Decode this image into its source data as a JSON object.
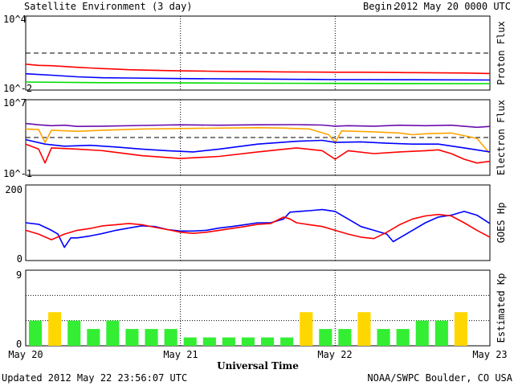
{
  "header": {
    "title": "Satellite Environment (3 day)",
    "begin_label": "Begin:",
    "begin_value": "2012 May 20 0000 UTC"
  },
  "footer": {
    "updated": "Updated 2012 May 22 23:56:07 UTC",
    "credit": "NOAA/SWPC Boulder, CO USA"
  },
  "colors": {
    "red": "#ff0000",
    "blue": "#0000ff",
    "green": "#00dd00",
    "orange": "#ffa500",
    "purple": "#6a0dad",
    "kp_green": "#33ee33",
    "kp_yellow": "#ffd700"
  },
  "chart_data": [
    {
      "id": "proton",
      "type": "line",
      "ylabel": "Proton Flux",
      "yscale": "log",
      "ylim": [
        0.01,
        10000
      ],
      "ytick_labels": [
        "10^4",
        "10^-2"
      ],
      "threshold": 10,
      "series": [
        {
          "color": "red",
          "values": [
            [
              0,
              1.25
            ],
            [
              2,
              1.0
            ],
            [
              4,
              0.95
            ],
            [
              6,
              0.82
            ],
            [
              8,
              0.7
            ],
            [
              10,
              0.62
            ],
            [
              12,
              0.55
            ],
            [
              14,
              0.5
            ],
            [
              16,
              0.45
            ],
            [
              18,
              0.42
            ],
            [
              20,
              0.4
            ],
            [
              22,
              0.38
            ],
            [
              24,
              0.36
            ],
            [
              28,
              0.34
            ],
            [
              32,
              0.32
            ],
            [
              36,
              0.31
            ],
            [
              40,
              0.3
            ],
            [
              44,
              0.29
            ],
            [
              48,
              0.28
            ],
            [
              52,
              0.28
            ],
            [
              56,
              0.27
            ],
            [
              60,
              0.26
            ],
            [
              64,
              0.25
            ],
            [
              68,
              0.24
            ],
            [
              72,
              0.22
            ]
          ]
        },
        {
          "color": "blue",
          "values": [
            [
              0,
              0.21
            ],
            [
              4,
              0.16
            ],
            [
              8,
              0.12
            ],
            [
              12,
              0.1
            ],
            [
              16,
              0.095
            ],
            [
              24,
              0.085
            ],
            [
              36,
              0.078
            ],
            [
              48,
              0.07
            ],
            [
              60,
              0.068
            ],
            [
              72,
              0.065
            ]
          ]
        },
        {
          "color": "green",
          "values": [
            [
              0,
              0.045
            ],
            [
              12,
              0.04
            ],
            [
              24,
              0.038
            ],
            [
              36,
              0.036
            ],
            [
              48,
              0.035
            ],
            [
              60,
              0.034
            ],
            [
              72,
              0.033
            ]
          ]
        }
      ]
    },
    {
      "id": "electron",
      "type": "line",
      "ylabel": "Electron Flux",
      "yscale": "log",
      "ylim": [
        0.1,
        10000000
      ],
      "ytick_labels": [
        "10^7",
        "10^-1"
      ],
      "threshold": 1000,
      "series": [
        {
          "color": "purple",
          "values": [
            [
              0,
              30000
            ],
            [
              2,
              22000
            ],
            [
              4,
              18000
            ],
            [
              6,
              20000
            ],
            [
              8,
              15000
            ],
            [
              12,
              16000
            ],
            [
              18,
              19000
            ],
            [
              24,
              22000
            ],
            [
              30,
              20000
            ],
            [
              36,
              22000
            ],
            [
              42,
              23000
            ],
            [
              46,
              21000
            ],
            [
              48,
              16000
            ],
            [
              50,
              18000
            ],
            [
              54,
              16000
            ],
            [
              58,
              20000
            ],
            [
              62,
              18000
            ],
            [
              66,
              20000
            ],
            [
              70,
              12000
            ],
            [
              72,
              15000
            ]
          ]
        },
        {
          "color": "orange",
          "values": [
            [
              0,
              8000
            ],
            [
              2,
              7000
            ],
            [
              3,
              300
            ],
            [
              4,
              6000
            ],
            [
              8,
              4500
            ],
            [
              12,
              6000
            ],
            [
              18,
              8000
            ],
            [
              24,
              9000
            ],
            [
              30,
              10000
            ],
            [
              36,
              11000
            ],
            [
              40,
              10000
            ],
            [
              44,
              8000
            ],
            [
              47,
              2000
            ],
            [
              48,
              300
            ],
            [
              49,
              5000
            ],
            [
              54,
              4000
            ],
            [
              58,
              3000
            ],
            [
              60,
              2000
            ],
            [
              62,
              2500
            ],
            [
              66,
              3000
            ],
            [
              70,
              800
            ],
            [
              72,
              20
            ]
          ]
        },
        {
          "color": "blue",
          "values": [
            [
              0,
              600
            ],
            [
              3,
              200
            ],
            [
              6,
              120
            ],
            [
              10,
              150
            ],
            [
              14,
              100
            ],
            [
              18,
              60
            ],
            [
              22,
              40
            ],
            [
              26,
              30
            ],
            [
              30,
              60
            ],
            [
              36,
              200
            ],
            [
              42,
              400
            ],
            [
              46,
              500
            ],
            [
              48,
              300
            ],
            [
              52,
              350
            ],
            [
              56,
              250
            ],
            [
              60,
              200
            ],
            [
              64,
              200
            ],
            [
              68,
              80
            ],
            [
              72,
              30
            ]
          ]
        },
        {
          "color": "red",
          "values": [
            [
              0,
              200
            ],
            [
              2,
              60
            ],
            [
              3,
              2
            ],
            [
              4,
              80
            ],
            [
              8,
              60
            ],
            [
              12,
              40
            ],
            [
              18,
              12
            ],
            [
              24,
              6
            ],
            [
              30,
              10
            ],
            [
              36,
              30
            ],
            [
              42,
              80
            ],
            [
              46,
              40
            ],
            [
              48,
              5
            ],
            [
              50,
              40
            ],
            [
              54,
              20
            ],
            [
              58,
              30
            ],
            [
              62,
              40
            ],
            [
              64,
              50
            ],
            [
              66,
              20
            ],
            [
              68,
              5
            ],
            [
              70,
              2
            ],
            [
              72,
              3
            ]
          ]
        }
      ]
    },
    {
      "id": "hp",
      "type": "line",
      "ylabel": "GOES Hp",
      "ylim": [
        0,
        200
      ],
      "ytick_labels": [
        "200",
        "0"
      ],
      "series": [
        {
          "color": "blue",
          "values": [
            [
              0,
              100
            ],
            [
              2,
              96
            ],
            [
              4,
              80
            ],
            [
              5,
              70
            ],
            [
              6,
              35
            ],
            [
              7,
              60
            ],
            [
              8,
              60
            ],
            [
              10,
              65
            ],
            [
              12,
              72
            ],
            [
              14,
              80
            ],
            [
              16,
              86
            ],
            [
              18,
              92
            ],
            [
              20,
              90
            ],
            [
              22,
              82
            ],
            [
              24,
              78
            ],
            [
              26,
              78
            ],
            [
              28,
              80
            ],
            [
              30,
              86
            ],
            [
              32,
              90
            ],
            [
              34,
              95
            ],
            [
              36,
              100
            ],
            [
              38,
              100
            ],
            [
              40,
              110
            ],
            [
              41,
              128
            ],
            [
              44,
              132
            ],
            [
              46,
              135
            ],
            [
              48,
              130
            ],
            [
              50,
              110
            ],
            [
              52,
              90
            ],
            [
              54,
              80
            ],
            [
              56,
              70
            ],
            [
              57,
              50
            ],
            [
              58,
              60
            ],
            [
              60,
              80
            ],
            [
              62,
              100
            ],
            [
              64,
              115
            ],
            [
              66,
              120
            ],
            [
              68,
              130
            ],
            [
              70,
              120
            ],
            [
              72,
              98
            ]
          ]
        },
        {
          "color": "red",
          "values": [
            [
              0,
              80
            ],
            [
              2,
              70
            ],
            [
              4,
              55
            ],
            [
              6,
              70
            ],
            [
              8,
              80
            ],
            [
              10,
              85
            ],
            [
              12,
              92
            ],
            [
              14,
              95
            ],
            [
              16,
              98
            ],
            [
              18,
              95
            ],
            [
              20,
              88
            ],
            [
              22,
              82
            ],
            [
              24,
              75
            ],
            [
              26,
              72
            ],
            [
              28,
              75
            ],
            [
              30,
              80
            ],
            [
              32,
              85
            ],
            [
              34,
              90
            ],
            [
              36,
              96
            ],
            [
              38,
              98
            ],
            [
              40,
              115
            ],
            [
              41,
              110
            ],
            [
              42,
              100
            ],
            [
              44,
              95
            ],
            [
              46,
              90
            ],
            [
              48,
              80
            ],
            [
              50,
              70
            ],
            [
              52,
              62
            ],
            [
              54,
              58
            ],
            [
              56,
              75
            ],
            [
              58,
              95
            ],
            [
              60,
              110
            ],
            [
              62,
              118
            ],
            [
              64,
              122
            ],
            [
              66,
              118
            ],
            [
              68,
              100
            ],
            [
              70,
              80
            ],
            [
              72,
              62
            ]
          ]
        }
      ]
    },
    {
      "id": "kp",
      "type": "bar",
      "ylabel": "Estimated Kp",
      "ylim": [
        0,
        9
      ],
      "ytick_labels": [
        "9",
        "0"
      ],
      "bar_width_hours": 3,
      "values": [
        3,
        4,
        3,
        2,
        3,
        2,
        2,
        2,
        1,
        1,
        1,
        1,
        1,
        1,
        4,
        2,
        2,
        4,
        2,
        2,
        3,
        3,
        4,
        0
      ],
      "colors": [
        "kp_green",
        "kp_yellow",
        "kp_green",
        "kp_green",
        "kp_green",
        "kp_green",
        "kp_green",
        "kp_green",
        "kp_green",
        "kp_green",
        "kp_green",
        "kp_green",
        "kp_green",
        "kp_green",
        "kp_yellow",
        "kp_green",
        "kp_green",
        "kp_yellow",
        "kp_green",
        "kp_green",
        "kp_green",
        "kp_green",
        "kp_yellow",
        "kp_green"
      ]
    }
  ],
  "x_axis": {
    "title": "Universal Time",
    "labels": [
      "May 20",
      "May 21",
      "May 22",
      "May 23"
    ],
    "range_hours": [
      0,
      72
    ]
  }
}
